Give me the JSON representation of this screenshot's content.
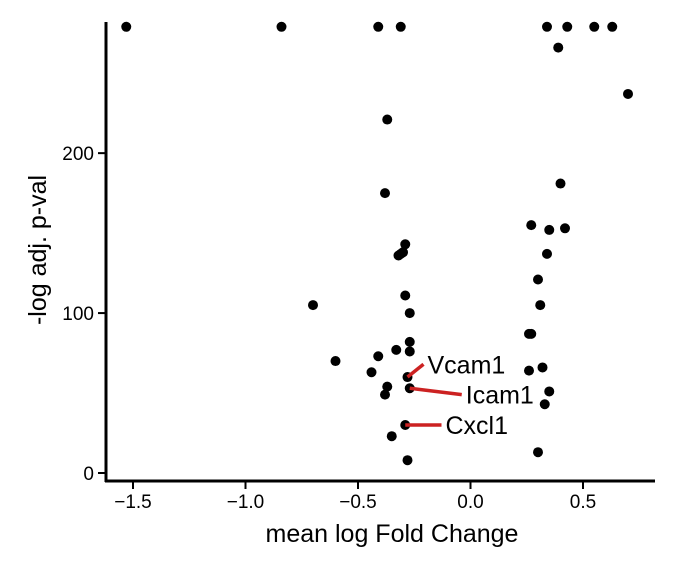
{
  "chart_data": {
    "type": "scatter",
    "title": "",
    "xlabel": "mean log Fold Change",
    "ylabel": "-log adj. p-val",
    "xlim": [
      -1.62,
      0.82
    ],
    "ylim": [
      -5,
      282
    ],
    "x_ticks": [
      -1.5,
      -1.0,
      -0.5,
      0.0,
      0.5
    ],
    "x_tick_labels": [
      "−1.5",
      "−1.0",
      "−0.5",
      "0.0",
      "0.5"
    ],
    "y_ticks": [
      0,
      100,
      200
    ],
    "y_tick_labels": [
      "0",
      "100",
      "200"
    ],
    "grid": false,
    "legend": "none",
    "colors": {
      "point": "#000000",
      "label_line": "#cc2222",
      "axis": "#000000"
    },
    "points": [
      {
        "x": -1.53,
        "y": 279
      },
      {
        "x": -0.84,
        "y": 279
      },
      {
        "x": -0.41,
        "y": 279
      },
      {
        "x": -0.31,
        "y": 279
      },
      {
        "x": 0.34,
        "y": 279
      },
      {
        "x": 0.43,
        "y": 279
      },
      {
        "x": 0.55,
        "y": 279
      },
      {
        "x": 0.63,
        "y": 279
      },
      {
        "x": 0.39,
        "y": 266
      },
      {
        "x": 0.7,
        "y": 237
      },
      {
        "x": -0.37,
        "y": 221
      },
      {
        "x": -0.38,
        "y": 175
      },
      {
        "x": 0.4,
        "y": 181
      },
      {
        "x": 0.27,
        "y": 155
      },
      {
        "x": 0.35,
        "y": 152
      },
      {
        "x": 0.42,
        "y": 153
      },
      {
        "x": -0.29,
        "y": 143
      },
      {
        "x": -0.3,
        "y": 138
      },
      {
        "x": -0.31,
        "y": 137
      },
      {
        "x": -0.32,
        "y": 136
      },
      {
        "x": 0.34,
        "y": 137
      },
      {
        "x": 0.3,
        "y": 121
      },
      {
        "x": -0.7,
        "y": 105
      },
      {
        "x": -0.29,
        "y": 111
      },
      {
        "x": 0.31,
        "y": 105
      },
      {
        "x": -0.27,
        "y": 100
      },
      {
        "x": 0.26,
        "y": 87
      },
      {
        "x": 0.27,
        "y": 87
      },
      {
        "x": -0.27,
        "y": 82
      },
      {
        "x": -0.33,
        "y": 77
      },
      {
        "x": -0.27,
        "y": 76
      },
      {
        "x": -0.41,
        "y": 73
      },
      {
        "x": -0.6,
        "y": 70
      },
      {
        "x": 0.32,
        "y": 66
      },
      {
        "x": 0.26,
        "y": 64
      },
      {
        "x": -0.44,
        "y": 63
      },
      {
        "x": -0.28,
        "y": 60
      },
      {
        "x": -0.37,
        "y": 54
      },
      {
        "x": -0.27,
        "y": 53
      },
      {
        "x": 0.35,
        "y": 51
      },
      {
        "x": -0.38,
        "y": 49
      },
      {
        "x": 0.33,
        "y": 43
      },
      {
        "x": -0.29,
        "y": 30
      },
      {
        "x": -0.35,
        "y": 23
      },
      {
        "x": 0.3,
        "y": 13
      },
      {
        "x": -0.28,
        "y": 8
      }
    ],
    "annotations": [
      {
        "text": "Vcam1",
        "point": {
          "x": -0.28,
          "y": 60
        },
        "label": {
          "x": -0.2,
          "y": 68
        }
      },
      {
        "text": "Icam1",
        "point": {
          "x": -0.27,
          "y": 53
        },
        "label": {
          "x": -0.03,
          "y": 49
        }
      },
      {
        "text": "Cxcl1",
        "point": {
          "x": -0.29,
          "y": 30
        },
        "label": {
          "x": -0.12,
          "y": 30
        }
      }
    ]
  }
}
